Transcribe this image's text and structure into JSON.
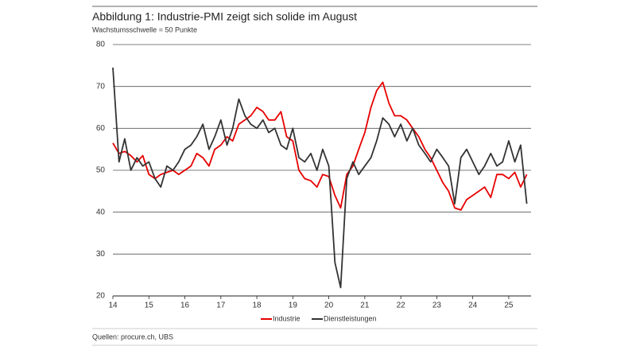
{
  "chart_data": {
    "type": "line",
    "title": "Abbildung 1: Industrie-PMI zeigt sich solide im August",
    "subtitle": "Wachstumsschwelle = 50 Punkte",
    "source": "Quellen: procure.ch, UBS",
    "x": [
      14,
      14.17,
      14.33,
      14.5,
      14.67,
      14.83,
      15,
      15.17,
      15.33,
      15.5,
      15.67,
      15.83,
      16,
      16.17,
      16.33,
      16.5,
      16.67,
      16.83,
      17,
      17.17,
      17.33,
      17.5,
      17.67,
      17.83,
      18,
      18.17,
      18.33,
      18.5,
      18.67,
      18.83,
      19,
      19.17,
      19.33,
      19.5,
      19.67,
      19.83,
      20,
      20.17,
      20.33,
      20.5,
      20.67,
      20.83,
      21,
      21.17,
      21.33,
      21.5,
      21.67,
      21.83,
      22,
      22.17,
      22.33,
      22.5,
      22.67,
      22.83,
      23,
      23.17,
      23.33,
      23.5,
      23.67,
      23.83,
      24,
      24.17,
      24.33,
      24.5,
      24.67,
      24.83,
      25,
      25.17,
      25.33,
      25.5
    ],
    "series": [
      {
        "name": "Industrie",
        "color": "#e60000",
        "values": [
          56.5,
          54,
          54.5,
          53.5,
          52,
          53.5,
          49,
          48,
          49,
          49.5,
          50,
          49,
          50,
          51,
          54,
          53,
          51,
          55,
          56,
          58,
          57,
          61,
          62,
          63,
          65,
          64,
          62,
          62,
          64,
          58,
          57,
          50,
          48,
          47.5,
          46,
          49,
          48.5,
          44,
          41,
          49,
          51,
          55,
          59,
          65,
          69,
          71,
          66,
          63,
          63,
          62,
          60,
          58,
          55,
          53,
          50,
          47,
          45,
          41,
          40.5,
          43,
          44,
          45,
          46,
          43.5,
          49,
          49,
          48,
          49.5,
          46,
          49
        ]
      },
      {
        "name": "Dienstleistungen",
        "color": "#333333",
        "values": [
          74.5,
          52,
          57.5,
          50,
          53,
          51,
          52,
          48,
          46,
          51,
          50,
          52,
          55,
          56,
          58,
          61,
          55,
          58,
          62,
          56,
          60,
          67,
          63,
          61,
          60,
          62,
          59,
          60,
          56,
          55,
          60,
          53,
          52,
          54,
          50,
          55,
          51,
          28,
          22,
          48,
          52,
          49,
          51,
          53,
          57,
          62.5,
          61,
          58,
          61,
          57,
          60,
          56,
          54,
          52,
          55,
          53,
          51,
          42,
          53,
          55,
          52,
          49,
          51,
          54,
          51,
          52,
          57,
          52,
          56,
          42
        ]
      }
    ],
    "xlim": [
      14,
      25.62
    ],
    "xticks": [
      14,
      15,
      16,
      17,
      18,
      19,
      20,
      21,
      22,
      23,
      24,
      25
    ],
    "ylim": [
      20,
      80
    ],
    "yticks": [
      20,
      30,
      40,
      50,
      60,
      70,
      80
    ],
    "grid": true,
    "legend": "bottom"
  }
}
